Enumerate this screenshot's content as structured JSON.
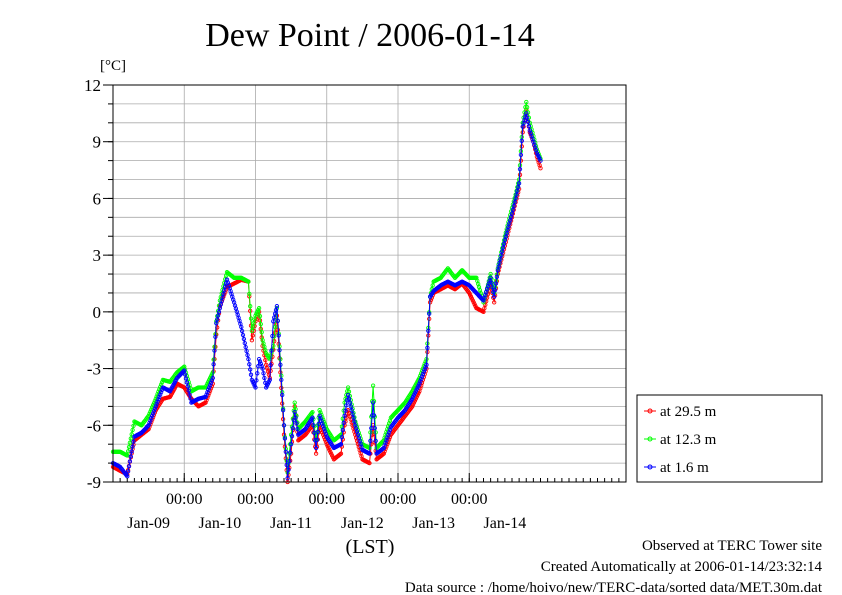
{
  "chart_data": {
    "type": "line",
    "title": "Dew Point / 2006-01-14",
    "ylabel": "[°C]",
    "xlabel": "(LST)",
    "ylim": [
      -9,
      12
    ],
    "yticks": [
      12,
      9,
      6,
      3,
      0,
      -3,
      -6,
      -9
    ],
    "xlim": [
      0,
      144
    ],
    "time_ticks": [
      {
        "x": 20,
        "label": "00:00"
      },
      {
        "x": 40,
        "label": "00:00"
      },
      {
        "x": 60,
        "label": "00:00"
      },
      {
        "x": 80,
        "label": "00:00"
      },
      {
        "x": 100,
        "label": "00:00"
      }
    ],
    "day_labels": [
      {
        "x": 10,
        "label": "Jan-09"
      },
      {
        "x": 30,
        "label": "Jan-10"
      },
      {
        "x": 50,
        "label": "Jan-11"
      },
      {
        "x": 70,
        "label": "Jan-12"
      },
      {
        "x": 90,
        "label": "Jan-13"
      },
      {
        "x": 110,
        "label": "Jan-14"
      }
    ],
    "legend_position": "right",
    "grid": true,
    "series": [
      {
        "name": "at 29.5 m",
        "color": "#ff0000",
        "points": [
          [
            0,
            -8.2
          ],
          [
            2,
            -8.4
          ],
          [
            4,
            -8.6
          ],
          [
            6,
            -6.8
          ],
          [
            8,
            -6.5
          ],
          [
            10,
            -6.2
          ],
          [
            12,
            -5.2
          ],
          [
            14,
            -4.6
          ],
          [
            16,
            -4.5
          ],
          [
            18,
            -3.8
          ],
          [
            20,
            -4.0
          ],
          [
            22,
            -4.6
          ],
          [
            24,
            -5.0
          ],
          [
            26,
            -4.8
          ],
          [
            28,
            -3.8
          ],
          [
            29,
            -1.2
          ],
          [
            30,
            0.3
          ],
          [
            32,
            1.3
          ],
          [
            34,
            1.5
          ],
          [
            36,
            1.7
          ],
          [
            38,
            1.6
          ],
          [
            39,
            -1.5
          ],
          [
            40,
            -0.5
          ],
          [
            41,
            0.0
          ],
          [
            42,
            -1.8
          ],
          [
            43,
            -2.8
          ],
          [
            44,
            -3.5
          ],
          [
            45,
            -2.0
          ],
          [
            46,
            -0.2
          ],
          [
            47,
            -3.2
          ],
          [
            48,
            -6.5
          ],
          [
            49,
            -9.0
          ],
          [
            50,
            -7.5
          ],
          [
            51,
            -5.0
          ],
          [
            52,
            -6.8
          ],
          [
            54,
            -6.5
          ],
          [
            56,
            -6.0
          ],
          [
            57,
            -7.5
          ],
          [
            58,
            -6.0
          ],
          [
            60,
            -7.0
          ],
          [
            62,
            -7.8
          ],
          [
            64,
            -7.5
          ],
          [
            65,
            -6.0
          ],
          [
            66,
            -5.2
          ],
          [
            68,
            -6.5
          ],
          [
            70,
            -7.8
          ],
          [
            72,
            -8.0
          ],
          [
            73,
            -6.0
          ],
          [
            74,
            -7.8
          ],
          [
            76,
            -7.5
          ],
          [
            78,
            -6.5
          ],
          [
            80,
            -6.0
          ],
          [
            82,
            -5.5
          ],
          [
            84,
            -5.0
          ],
          [
            86,
            -4.2
          ],
          [
            88,
            -3.0
          ],
          [
            89,
            0.5
          ],
          [
            90,
            1.0
          ],
          [
            92,
            1.2
          ],
          [
            94,
            1.4
          ],
          [
            96,
            1.2
          ],
          [
            98,
            1.5
          ],
          [
            100,
            1.0
          ],
          [
            102,
            0.2
          ],
          [
            104,
            0.0
          ],
          [
            106,
            1.5
          ],
          [
            107,
            0.5
          ],
          [
            108,
            2.0
          ],
          [
            110,
            3.5
          ],
          [
            112,
            5.0
          ],
          [
            113,
            5.8
          ],
          [
            114,
            6.5
          ],
          [
            115,
            9.5
          ],
          [
            116,
            10.7
          ],
          [
            117,
            9.5
          ],
          [
            118,
            9.0
          ],
          [
            119,
            8.2
          ],
          [
            120,
            7.6
          ]
        ]
      },
      {
        "name": "at 12.3 m",
        "color": "#00ff00",
        "points": [
          [
            0,
            -7.4
          ],
          [
            2,
            -7.4
          ],
          [
            4,
            -7.6
          ],
          [
            6,
            -5.8
          ],
          [
            8,
            -6.0
          ],
          [
            10,
            -5.5
          ],
          [
            12,
            -4.6
          ],
          [
            14,
            -3.6
          ],
          [
            16,
            -3.7
          ],
          [
            18,
            -3.2
          ],
          [
            20,
            -2.9
          ],
          [
            22,
            -4.2
          ],
          [
            24,
            -4.0
          ],
          [
            26,
            -4.0
          ],
          [
            28,
            -3.2
          ],
          [
            29,
            -0.5
          ],
          [
            30,
            0.6
          ],
          [
            32,
            2.1
          ],
          [
            34,
            1.8
          ],
          [
            36,
            1.8
          ],
          [
            38,
            1.6
          ],
          [
            39,
            -1.0
          ],
          [
            40,
            -0.2
          ],
          [
            41,
            0.2
          ],
          [
            42,
            -1.5
          ],
          [
            43,
            -2.2
          ],
          [
            44,
            -2.5
          ],
          [
            45,
            -1.8
          ],
          [
            46,
            0.2
          ],
          [
            47,
            -2.5
          ],
          [
            48,
            -6.0
          ],
          [
            49,
            -8.5
          ],
          [
            50,
            -6.5
          ],
          [
            51,
            -4.8
          ],
          [
            52,
            -6.2
          ],
          [
            54,
            -5.8
          ],
          [
            56,
            -5.3
          ],
          [
            57,
            -6.8
          ],
          [
            58,
            -5.2
          ],
          [
            60,
            -6.2
          ],
          [
            62,
            -6.8
          ],
          [
            64,
            -6.5
          ],
          [
            65,
            -4.8
          ],
          [
            66,
            -4.0
          ],
          [
            68,
            -5.8
          ],
          [
            70,
            -7.0
          ],
          [
            72,
            -7.2
          ],
          [
            73,
            -3.9
          ],
          [
            74,
            -7.2
          ],
          [
            76,
            -6.8
          ],
          [
            78,
            -5.6
          ],
          [
            80,
            -5.2
          ],
          [
            82,
            -4.8
          ],
          [
            84,
            -4.2
          ],
          [
            86,
            -3.5
          ],
          [
            88,
            -2.5
          ],
          [
            89,
            0.8
          ],
          [
            90,
            1.6
          ],
          [
            92,
            1.8
          ],
          [
            94,
            2.3
          ],
          [
            96,
            1.8
          ],
          [
            98,
            2.2
          ],
          [
            100,
            1.8
          ],
          [
            102,
            1.8
          ],
          [
            104,
            0.5
          ],
          [
            106,
            2.0
          ],
          [
            107,
            1.0
          ],
          [
            108,
            2.3
          ],
          [
            110,
            4.0
          ],
          [
            112,
            5.5
          ],
          [
            113,
            6.2
          ],
          [
            114,
            7.0
          ],
          [
            115,
            10.0
          ],
          [
            116,
            11.1
          ],
          [
            117,
            10.0
          ],
          [
            118,
            9.3
          ],
          [
            119,
            8.6
          ],
          [
            120,
            8.1
          ]
        ]
      },
      {
        "name": "at 1.6 m",
        "color": "#0000ff",
        "points": [
          [
            0,
            -8.0
          ],
          [
            2,
            -8.2
          ],
          [
            4,
            -8.7
          ],
          [
            6,
            -6.6
          ],
          [
            8,
            -6.4
          ],
          [
            10,
            -6.0
          ],
          [
            12,
            -5.0
          ],
          [
            14,
            -4.0
          ],
          [
            16,
            -4.2
          ],
          [
            18,
            -3.5
          ],
          [
            20,
            -3.1
          ],
          [
            22,
            -4.8
          ],
          [
            24,
            -4.6
          ],
          [
            26,
            -4.5
          ],
          [
            28,
            -3.5
          ],
          [
            29,
            -0.6
          ],
          [
            30,
            0.2
          ],
          [
            32,
            1.7
          ],
          [
            34,
            0.5
          ],
          [
            36,
            -0.8
          ],
          [
            38,
            -2.5
          ],
          [
            39,
            -3.6
          ],
          [
            40,
            -4.0
          ],
          [
            41,
            -2.5
          ],
          [
            42,
            -3.0
          ],
          [
            43,
            -4.0
          ],
          [
            44,
            -3.6
          ],
          [
            45,
            -0.5
          ],
          [
            46,
            0.3
          ],
          [
            47,
            -2.8
          ],
          [
            48,
            -6.0
          ],
          [
            49,
            -8.8
          ],
          [
            50,
            -7.0
          ],
          [
            51,
            -5.3
          ],
          [
            52,
            -6.5
          ],
          [
            54,
            -6.2
          ],
          [
            56,
            -5.6
          ],
          [
            57,
            -7.2
          ],
          [
            58,
            -5.5
          ],
          [
            60,
            -6.6
          ],
          [
            62,
            -7.2
          ],
          [
            64,
            -7.0
          ],
          [
            65,
            -5.5
          ],
          [
            66,
            -4.4
          ],
          [
            68,
            -6.0
          ],
          [
            70,
            -7.3
          ],
          [
            72,
            -7.5
          ],
          [
            73,
            -4.8
          ],
          [
            74,
            -7.5
          ],
          [
            76,
            -7.2
          ],
          [
            78,
            -6.1
          ],
          [
            80,
            -5.6
          ],
          [
            82,
            -5.2
          ],
          [
            84,
            -4.6
          ],
          [
            86,
            -3.8
          ],
          [
            88,
            -2.8
          ],
          [
            89,
            0.8
          ],
          [
            90,
            1.1
          ],
          [
            92,
            1.4
          ],
          [
            94,
            1.6
          ],
          [
            96,
            1.4
          ],
          [
            98,
            1.6
          ],
          [
            100,
            1.4
          ],
          [
            102,
            1.0
          ],
          [
            104,
            0.6
          ],
          [
            106,
            1.8
          ],
          [
            107,
            0.8
          ],
          [
            108,
            2.2
          ],
          [
            110,
            3.8
          ],
          [
            112,
            5.2
          ],
          [
            113,
            6.0
          ],
          [
            114,
            6.8
          ],
          [
            115,
            9.8
          ],
          [
            116,
            10.5
          ],
          [
            117,
            9.6
          ],
          [
            118,
            9.0
          ],
          [
            119,
            8.4
          ],
          [
            120,
            8.0
          ]
        ]
      }
    ]
  },
  "footer": {
    "observed": "Observed at TERC Tower site",
    "created": "Created Automatically at 2006-01-14/23:32:14",
    "source": "Data source : /home/hoivo/new/TERC-data/sorted  data/MET.30m.dat"
  }
}
